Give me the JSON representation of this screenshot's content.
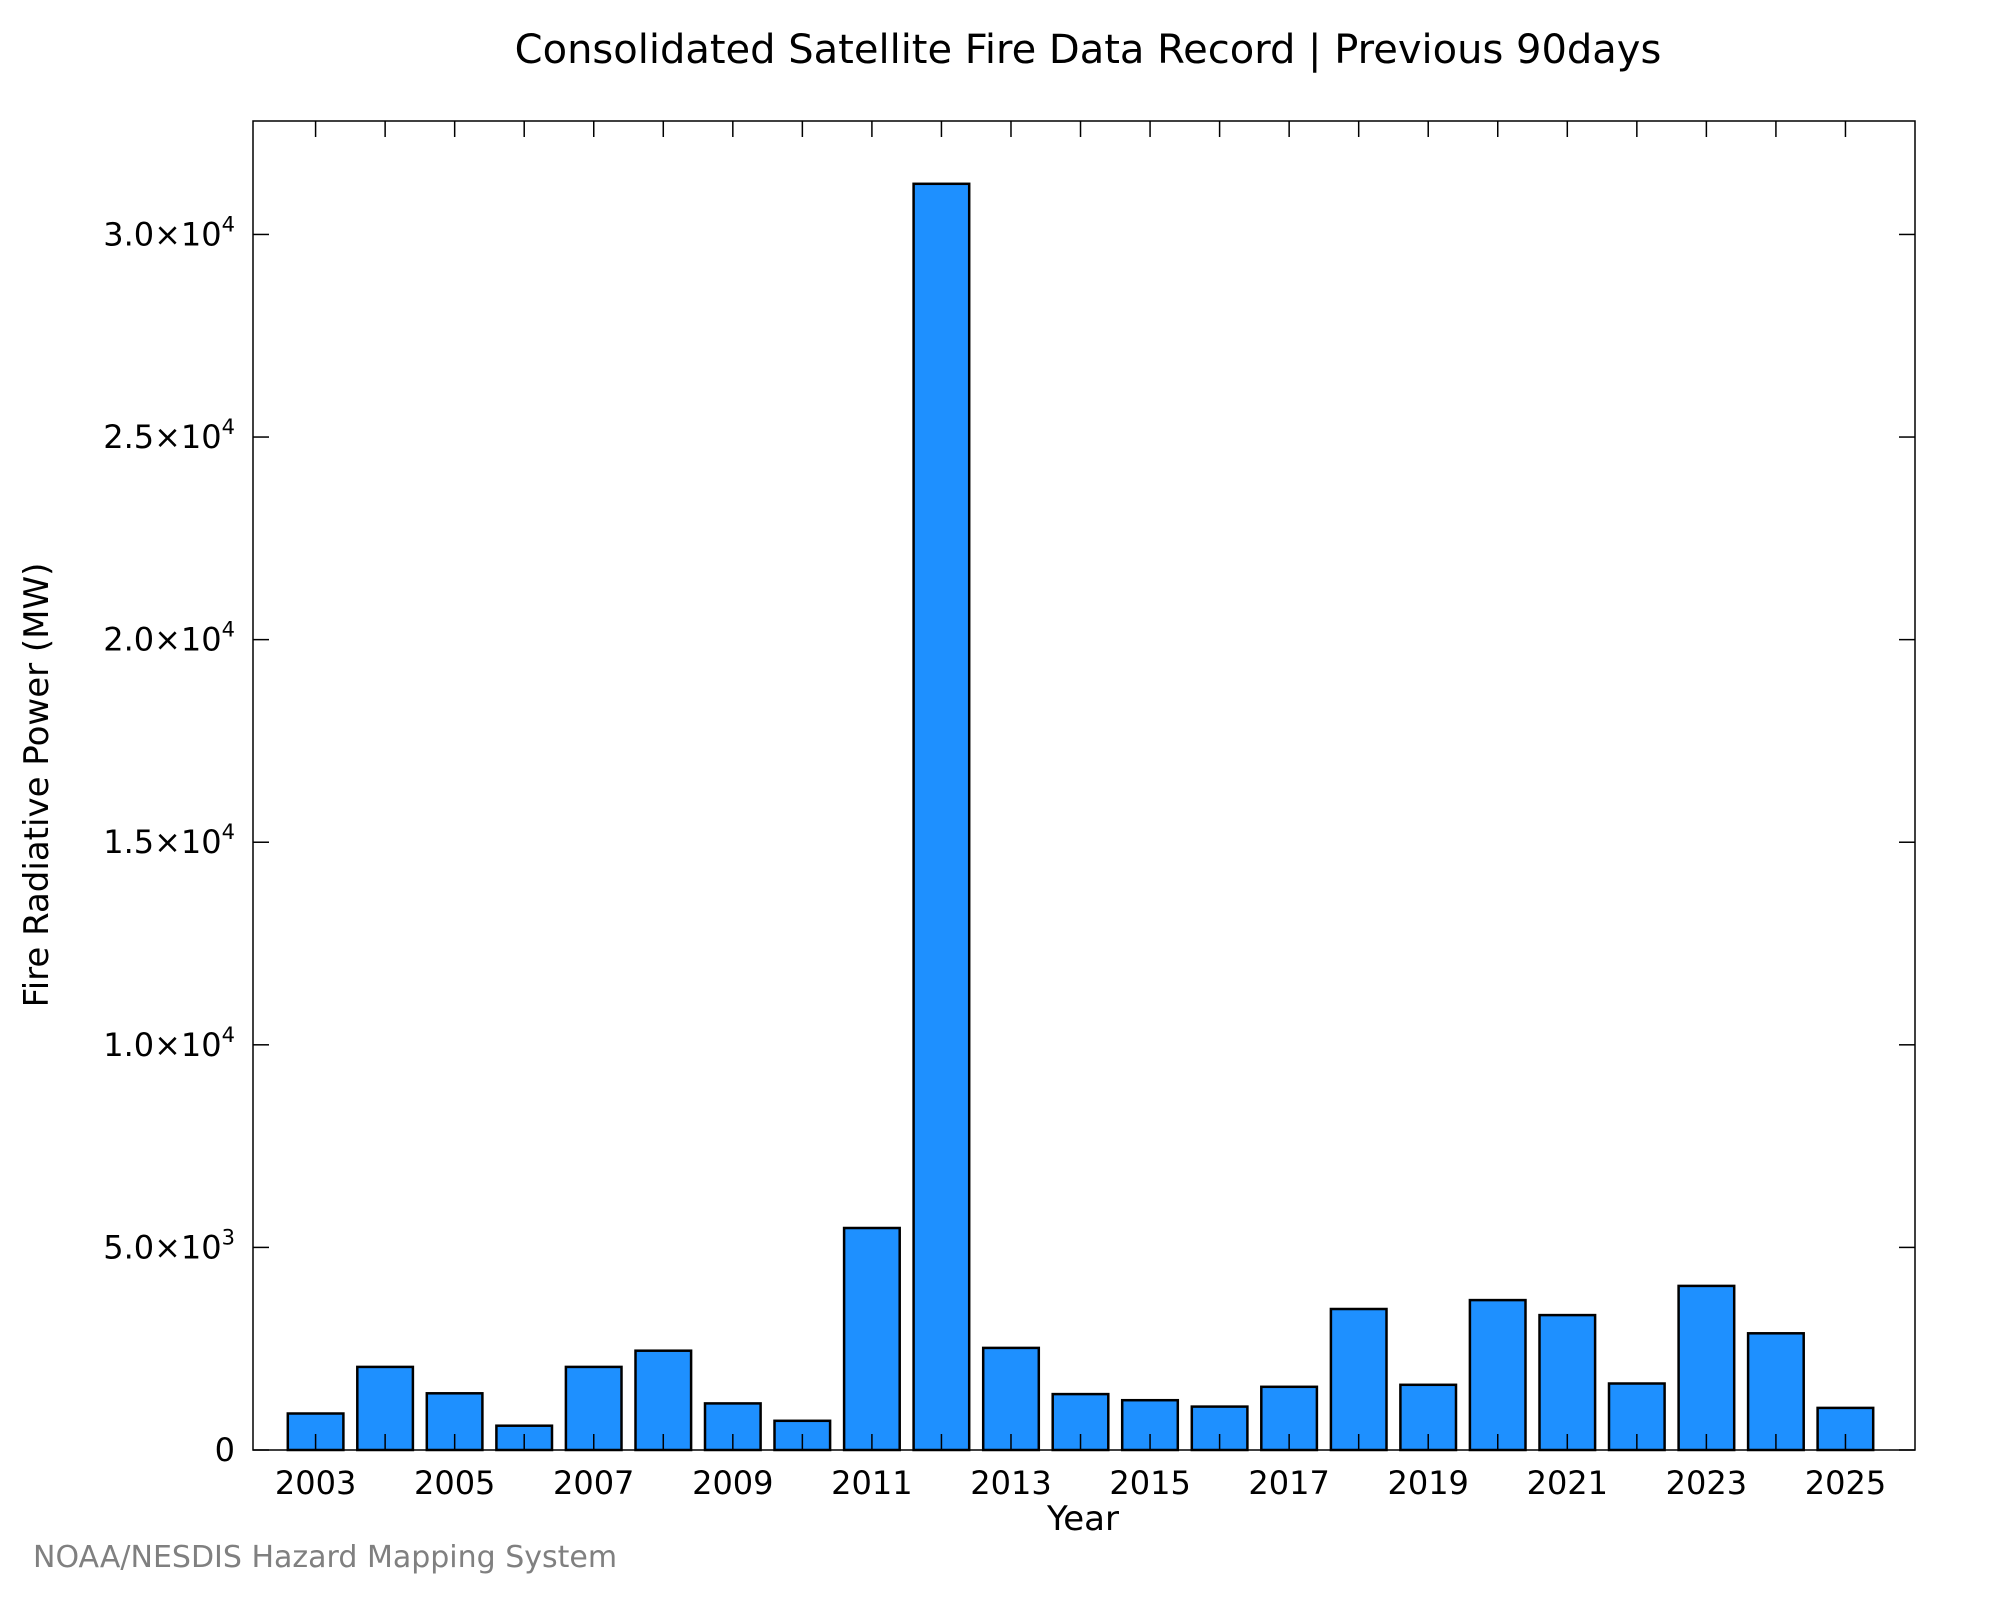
{
  "chart_data": {
    "type": "bar",
    "title": "Consolidated Satellite Fire Data Record | Previous 90days",
    "xlabel": "Year",
    "ylabel": "Fire Radiative Power (MW)",
    "categories": [
      "2003",
      "2004",
      "2005",
      "2006",
      "2007",
      "2008",
      "2009",
      "2010",
      "2011",
      "2012",
      "2013",
      "2014",
      "2015",
      "2016",
      "2017",
      "2018",
      "2019",
      "2020",
      "2021",
      "2022",
      "2023",
      "2024",
      "2025"
    ],
    "values": [
      900,
      2050,
      1400,
      600,
      2050,
      2450,
      1150,
      720,
      5480,
      31250,
      2520,
      1380,
      1230,
      1070,
      1560,
      3480,
      1610,
      3700,
      3330,
      1640,
      4050,
      2880,
      1040
    ],
    "x_tick_labels": [
      "2003",
      "2005",
      "2007",
      "2009",
      "2011",
      "2013",
      "2015",
      "2017",
      "2019",
      "2021",
      "2023",
      "2025"
    ],
    "y_ticks": [
      {
        "value": 0,
        "mantissa": "0",
        "exp": ""
      },
      {
        "value": 5000,
        "mantissa": "5.0×10",
        "exp": "3"
      },
      {
        "value": 10000,
        "mantissa": "1.0×10",
        "exp": "4"
      },
      {
        "value": 15000,
        "mantissa": "1.5×10",
        "exp": "4"
      },
      {
        "value": 20000,
        "mantissa": "2.0×10",
        "exp": "4"
      },
      {
        "value": 25000,
        "mantissa": "2.5×10",
        "exp": "4"
      },
      {
        "value": 30000,
        "mantissa": "3.0×10",
        "exp": "4"
      }
    ],
    "ylim": [
      0,
      32800
    ],
    "xlim": [
      2002.1,
      2026.0
    ],
    "grid": false,
    "bar_color": "#1E90FF",
    "edge_color": "#000000"
  },
  "footer": "NOAA/NESDIS Hazard Mapping System"
}
